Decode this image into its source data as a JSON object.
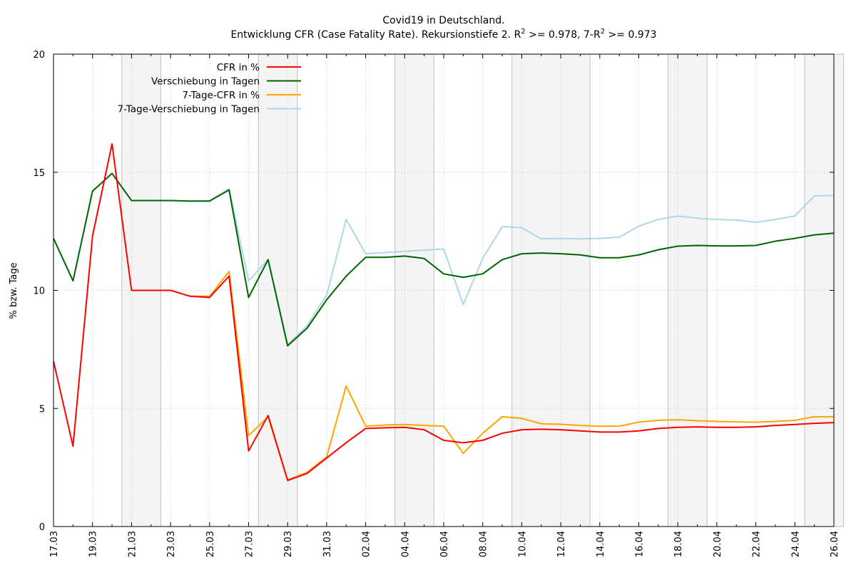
{
  "chart_data": {
    "type": "line",
    "title_line1": "Covid19 in Deutschland.",
    "title_line2_prefix": "Entwicklung CFR (Case Fatality Rate). Rekursionstiefe 2. R",
    "title_line2_mid": " >= 0.978, 7-R",
    "title_line2_suffix": " >= 0.973",
    "title_sup": "2",
    "ylabel": "% bzw. Tage",
    "xlabel": "",
    "ylim": [
      0,
      20
    ],
    "yticks": [
      0,
      5,
      10,
      15,
      20
    ],
    "grid": true,
    "legend_position": "top-left",
    "x": [
      "17.03",
      "18.03",
      "19.03",
      "20.03",
      "21.03",
      "22.03",
      "23.03",
      "24.03",
      "25.03",
      "26.03",
      "27.03",
      "28.03",
      "29.03",
      "30.03",
      "31.03",
      "01.04",
      "02.04",
      "03.04",
      "04.04",
      "05.04",
      "06.04",
      "07.04",
      "08.04",
      "09.04",
      "10.04",
      "11.04",
      "12.04",
      "13.04",
      "14.04",
      "15.04",
      "16.04",
      "17.04",
      "18.04",
      "19.04",
      "20.04",
      "21.04",
      "22.04",
      "23.04",
      "24.04",
      "25.04",
      "26.04"
    ],
    "xtick_labels": [
      "17.03",
      "19.03",
      "21.03",
      "23.03",
      "25.03",
      "27.03",
      "29.03",
      "31.03",
      "02.04",
      "04.04",
      "06.04",
      "08.04",
      "10.04",
      "12.04",
      "14.04",
      "16.04",
      "18.04",
      "20.04",
      "22.04",
      "24.04",
      "26.04"
    ],
    "shaded_ranges": [
      [
        "21.03",
        "22.03"
      ],
      [
        "28.03",
        "29.03"
      ],
      [
        "04.04",
        "05.04"
      ],
      [
        "10.04",
        "13.04"
      ],
      [
        "18.04",
        "19.04"
      ],
      [
        "25.04",
        "26.04"
      ]
    ],
    "series": [
      {
        "name": "CFR in %",
        "color": "#ff0000",
        "values": [
          7.0,
          3.4,
          12.3,
          16.2,
          10.0,
          10.0,
          10.0,
          9.75,
          9.7,
          10.6,
          3.2,
          4.7,
          1.95,
          2.25,
          2.9,
          3.55,
          4.15,
          4.18,
          4.2,
          4.1,
          3.65,
          3.55,
          3.65,
          3.95,
          4.1,
          4.12,
          4.1,
          4.05,
          4.0,
          4.0,
          4.05,
          4.15,
          4.2,
          4.22,
          4.2,
          4.2,
          4.22,
          4.28,
          4.32,
          4.37,
          4.4
        ]
      },
      {
        "name": "Verschiebung in Tagen",
        "color": "#006400",
        "values": [
          12.2,
          10.4,
          14.2,
          14.95,
          13.8,
          13.8,
          13.8,
          13.78,
          13.78,
          14.25,
          9.7,
          11.3,
          7.65,
          8.4,
          9.6,
          10.6,
          11.4,
          11.4,
          11.45,
          11.35,
          10.7,
          10.55,
          10.7,
          11.3,
          11.55,
          11.58,
          11.55,
          11.5,
          11.38,
          11.38,
          11.5,
          11.72,
          11.87,
          11.9,
          11.88,
          11.88,
          11.9,
          12.08,
          12.2,
          12.35,
          12.42
        ]
      },
      {
        "name": "7-Tage-CFR in %",
        "color": "#ffa500",
        "values": [
          null,
          null,
          null,
          null,
          null,
          null,
          null,
          9.75,
          9.75,
          10.8,
          3.85,
          4.65,
          1.97,
          2.3,
          2.95,
          5.95,
          4.25,
          4.3,
          4.32,
          4.28,
          4.25,
          3.1,
          3.95,
          4.65,
          4.58,
          4.35,
          4.33,
          4.28,
          4.25,
          4.25,
          4.42,
          4.5,
          4.52,
          4.48,
          4.45,
          4.43,
          4.42,
          4.45,
          4.5,
          4.65,
          4.65
        ]
      },
      {
        "name": "7-Tage-Verschiebung in Tagen",
        "color": "#add8e6",
        "values": [
          null,
          null,
          null,
          null,
          null,
          null,
          null,
          13.78,
          13.8,
          14.3,
          10.4,
          11.3,
          7.7,
          8.5,
          9.8,
          13.0,
          11.55,
          11.6,
          11.65,
          11.7,
          11.75,
          9.4,
          11.35,
          12.7,
          12.65,
          12.18,
          12.2,
          12.18,
          12.2,
          12.25,
          12.72,
          13.0,
          13.15,
          13.05,
          13.0,
          12.98,
          12.88,
          13.0,
          13.15,
          14.0,
          14.02
        ]
      }
    ]
  }
}
